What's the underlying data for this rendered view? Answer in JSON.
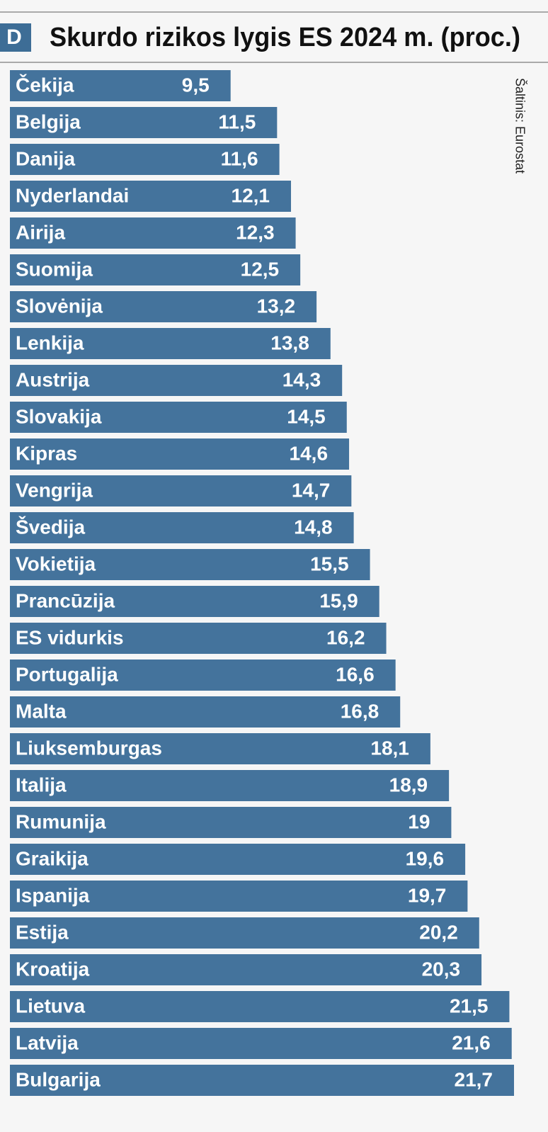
{
  "logo": "D",
  "chart_data": {
    "type": "barh",
    "title": "Skurdo rizikos lygis ES 2024 m. (proc.)",
    "source": "Šaltinis: Eurostat",
    "color": "#44739c",
    "categories": [
      "Čekija",
      "Belgija",
      "Danija",
      "Nyderlandai",
      "Airija",
      "Suomija",
      "Slovėnija",
      "Lenkija",
      "Austrija",
      "Slovakija",
      "Kipras",
      "Vengrija",
      "Švedija",
      "Vokietija",
      "Prancūzija",
      "ES vidurkis",
      "Portugalija",
      "Malta",
      "Liuksemburgas",
      "Italija",
      "Rumunija",
      "Graikija",
      "Ispanija",
      "Estija",
      "Kroatija",
      "Lietuva",
      "Latvija",
      "Bulgarija"
    ],
    "values": [
      9.5,
      11.5,
      11.6,
      12.1,
      12.3,
      12.5,
      13.2,
      13.8,
      14.3,
      14.5,
      14.6,
      14.7,
      14.8,
      15.5,
      15.9,
      16.2,
      16.6,
      16.8,
      18.1,
      18.9,
      19,
      19.6,
      19.7,
      20.2,
      20.3,
      21.5,
      21.6,
      21.7
    ],
    "value_labels": [
      "9,5",
      "11,5",
      "11,6",
      "12,1",
      "12,3",
      "12,5",
      "13,2",
      "13,8",
      "14,3",
      "14,5",
      "14,6",
      "14,7",
      "14,8",
      "15,5",
      "15,9",
      "16,2",
      "16,6",
      "16,8",
      "18,1",
      "18,9",
      "19",
      "19,6",
      "19,7",
      "20,2",
      "20,3",
      "21,5",
      "21,6",
      "21,7"
    ]
  }
}
